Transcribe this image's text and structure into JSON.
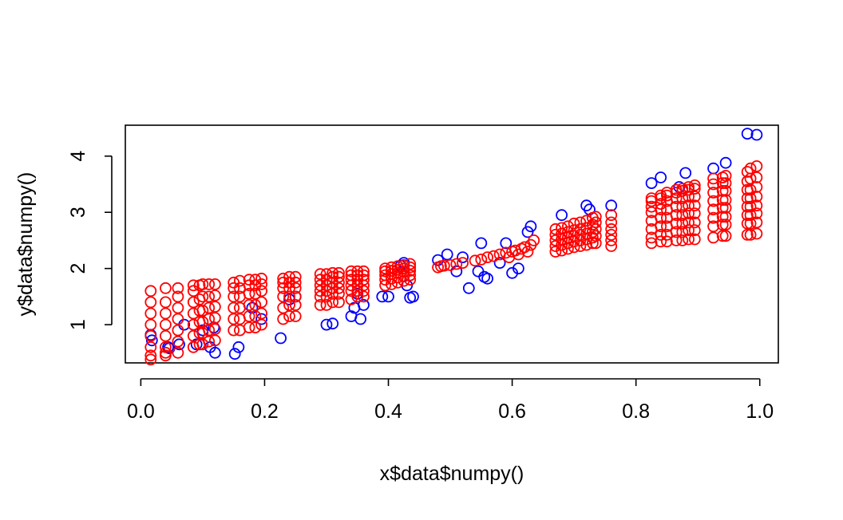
{
  "chart_data": {
    "type": "scatter",
    "title": "",
    "xlabel": "x$data$numpy()",
    "ylabel": "y$data$numpy()",
    "xlim": [
      -0.025,
      1.03
    ],
    "ylim": [
      0.32,
      4.55
    ],
    "xticks": [
      0.0,
      0.2,
      0.4,
      0.6,
      0.8,
      1.0
    ],
    "xtick_labels": [
      "0.0",
      "0.2",
      "0.4",
      "0.6",
      "0.8",
      "1.0"
    ],
    "yticks": [
      1,
      2,
      3,
      4
    ],
    "ytick_labels": [
      "1",
      "2",
      "3",
      "4"
    ],
    "grid": false,
    "legend": "none",
    "series": [
      {
        "color": "#0000ff",
        "marker": "open-circle",
        "x": [
          0.016,
          0.018,
          0.044,
          0.046,
          0.062,
          0.07,
          0.09,
          0.1,
          0.112,
          0.118,
          0.12,
          0.152,
          0.158,
          0.18,
          0.195,
          0.226,
          0.24,
          0.25,
          0.3,
          0.31,
          0.34,
          0.345,
          0.35,
          0.355,
          0.36,
          0.39,
          0.4,
          0.42,
          0.425,
          0.43,
          0.435,
          0.44,
          0.48,
          0.495,
          0.51,
          0.52,
          0.53,
          0.545,
          0.55,
          0.555,
          0.56,
          0.58,
          0.59,
          0.6,
          0.61,
          0.625,
          0.63,
          0.68,
          0.72,
          0.725,
          0.76,
          0.825,
          0.84,
          0.87,
          0.88,
          0.925,
          0.945,
          0.98,
          0.995
        ],
        "y": [
          0.82,
          0.72,
          0.6,
          0.58,
          0.65,
          1.0,
          0.65,
          0.9,
          0.6,
          0.95,
          0.5,
          0.48,
          0.6,
          1.3,
          1.1,
          0.76,
          1.45,
          1.5,
          1.0,
          1.02,
          1.15,
          1.3,
          1.55,
          1.1,
          1.35,
          1.5,
          1.5,
          2.05,
          2.1,
          1.7,
          1.48,
          1.5,
          2.15,
          2.25,
          1.95,
          2.2,
          1.65,
          1.95,
          2.45,
          1.85,
          1.82,
          2.1,
          2.45,
          1.92,
          2.0,
          2.65,
          2.75,
          2.95,
          3.12,
          3.05,
          3.12,
          3.52,
          3.62,
          3.45,
          3.7,
          3.78,
          3.88,
          4.4,
          4.38
        ]
      },
      {
        "color": "#ff0000",
        "marker": "open-circle",
        "x": [
          0.016,
          0.016,
          0.016,
          0.016,
          0.016,
          0.016,
          0.016,
          0.016,
          0.04,
          0.04,
          0.04,
          0.04,
          0.04,
          0.04,
          0.04,
          0.04,
          0.06,
          0.06,
          0.06,
          0.06,
          0.06,
          0.06,
          0.06,
          0.085,
          0.085,
          0.085,
          0.085,
          0.085,
          0.085,
          0.085,
          0.095,
          0.095,
          0.095,
          0.095,
          0.095,
          0.095,
          0.1,
          0.1,
          0.1,
          0.1,
          0.1,
          0.1,
          0.11,
          0.11,
          0.11,
          0.11,
          0.11,
          0.11,
          0.12,
          0.12,
          0.12,
          0.12,
          0.12,
          0.12,
          0.15,
          0.15,
          0.15,
          0.15,
          0.15,
          0.15,
          0.16,
          0.16,
          0.16,
          0.16,
          0.16,
          0.16,
          0.175,
          0.175,
          0.175,
          0.175,
          0.175,
          0.175,
          0.185,
          0.185,
          0.185,
          0.185,
          0.185,
          0.185,
          0.195,
          0.195,
          0.195,
          0.195,
          0.195,
          0.195,
          0.23,
          0.23,
          0.23,
          0.23,
          0.23,
          0.23,
          0.24,
          0.24,
          0.24,
          0.24,
          0.24,
          0.24,
          0.25,
          0.25,
          0.25,
          0.25,
          0.25,
          0.25,
          0.29,
          0.29,
          0.29,
          0.29,
          0.29,
          0.29,
          0.3,
          0.3,
          0.3,
          0.3,
          0.3,
          0.3,
          0.31,
          0.31,
          0.31,
          0.31,
          0.31,
          0.31,
          0.32,
          0.32,
          0.32,
          0.32,
          0.32,
          0.32,
          0.34,
          0.34,
          0.34,
          0.34,
          0.34,
          0.34,
          0.35,
          0.35,
          0.35,
          0.35,
          0.35,
          0.35,
          0.36,
          0.36,
          0.36,
          0.36,
          0.36,
          0.36,
          0.395,
          0.395,
          0.395,
          0.395,
          0.395,
          0.405,
          0.405,
          0.405,
          0.405,
          0.405,
          0.415,
          0.415,
          0.415,
          0.415,
          0.415,
          0.425,
          0.425,
          0.425,
          0.425,
          0.425,
          0.435,
          0.435,
          0.435,
          0.435,
          0.435,
          0.48,
          0.485,
          0.49,
          0.5,
          0.51,
          0.52,
          0.54,
          0.55,
          0.56,
          0.57,
          0.58,
          0.59,
          0.595,
          0.6,
          0.605,
          0.61,
          0.615,
          0.62,
          0.625,
          0.63,
          0.635,
          0.67,
          0.67,
          0.67,
          0.67,
          0.67,
          0.68,
          0.68,
          0.68,
          0.68,
          0.68,
          0.69,
          0.69,
          0.69,
          0.69,
          0.69,
          0.7,
          0.7,
          0.7,
          0.7,
          0.7,
          0.71,
          0.71,
          0.71,
          0.71,
          0.71,
          0.72,
          0.72,
          0.72,
          0.72,
          0.72,
          0.73,
          0.73,
          0.73,
          0.73,
          0.73,
          0.735,
          0.735,
          0.735,
          0.735,
          0.735,
          0.76,
          0.76,
          0.76,
          0.76,
          0.76,
          0.76,
          0.825,
          0.825,
          0.825,
          0.825,
          0.825,
          0.825,
          0.825,
          0.825,
          0.84,
          0.84,
          0.84,
          0.84,
          0.84,
          0.84,
          0.84,
          0.84,
          0.85,
          0.85,
          0.85,
          0.85,
          0.85,
          0.85,
          0.85,
          0.85,
          0.865,
          0.865,
          0.865,
          0.865,
          0.865,
          0.865,
          0.865,
          0.865,
          0.875,
          0.875,
          0.875,
          0.875,
          0.875,
          0.875,
          0.875,
          0.875,
          0.885,
          0.885,
          0.885,
          0.885,
          0.885,
          0.885,
          0.885,
          0.885,
          0.895,
          0.895,
          0.895,
          0.895,
          0.895,
          0.895,
          0.895,
          0.895,
          0.925,
          0.925,
          0.925,
          0.925,
          0.925,
          0.925,
          0.925,
          0.925,
          0.94,
          0.94,
          0.94,
          0.94,
          0.94,
          0.94,
          0.94,
          0.94,
          0.945,
          0.945,
          0.945,
          0.945,
          0.945,
          0.945,
          0.945,
          0.945,
          0.98,
          0.98,
          0.98,
          0.98,
          0.98,
          0.98,
          0.98,
          0.98,
          0.985,
          0.985,
          0.985,
          0.985,
          0.985,
          0.985,
          0.985,
          0.985,
          0.995,
          0.995,
          0.995,
          0.995,
          0.995,
          0.995,
          0.995,
          0.995
        ],
        "y": [
          0.45,
          0.6,
          0.8,
          1.0,
          1.2,
          1.4,
          1.6,
          0.38,
          0.45,
          0.6,
          0.8,
          1.0,
          1.2,
          1.4,
          1.65,
          0.5,
          0.5,
          0.7,
          0.9,
          1.1,
          1.3,
          1.5,
          1.65,
          0.6,
          0.8,
          1.0,
          1.2,
          1.4,
          1.6,
          1.7,
          0.65,
          0.85,
          1.05,
          1.25,
          1.45,
          1.7,
          0.65,
          0.85,
          1.05,
          1.25,
          1.5,
          1.72,
          0.7,
          0.9,
          1.1,
          1.3,
          1.5,
          1.72,
          0.72,
          0.92,
          1.12,
          1.32,
          1.52,
          1.72,
          0.9,
          1.1,
          1.3,
          1.5,
          1.65,
          1.75,
          0.9,
          1.1,
          1.3,
          1.5,
          1.65,
          1.78,
          0.95,
          1.15,
          1.35,
          1.55,
          1.7,
          1.8,
          0.95,
          1.15,
          1.35,
          1.55,
          1.7,
          1.8,
          1.0,
          1.2,
          1.4,
          1.6,
          1.72,
          1.82,
          1.1,
          1.3,
          1.5,
          1.65,
          1.75,
          1.82,
          1.15,
          1.35,
          1.5,
          1.65,
          1.75,
          1.85,
          1.15,
          1.35,
          1.5,
          1.65,
          1.75,
          1.85,
          1.35,
          1.5,
          1.6,
          1.7,
          1.8,
          1.9,
          1.35,
          1.5,
          1.6,
          1.7,
          1.8,
          1.9,
          1.4,
          1.55,
          1.65,
          1.75,
          1.85,
          1.92,
          1.4,
          1.55,
          1.65,
          1.75,
          1.85,
          1.92,
          1.45,
          1.6,
          1.7,
          1.8,
          1.88,
          1.95,
          1.5,
          1.6,
          1.7,
          1.8,
          1.88,
          1.95,
          1.5,
          1.6,
          1.7,
          1.8,
          1.88,
          1.95,
          1.7,
          1.8,
          1.88,
          1.95,
          2.0,
          1.72,
          1.82,
          1.9,
          1.96,
          2.02,
          1.75,
          1.84,
          1.92,
          1.98,
          2.04,
          1.78,
          1.86,
          1.94,
          2.0,
          2.06,
          1.8,
          1.88,
          1.96,
          2.02,
          2.08,
          2.02,
          2.04,
          2.05,
          2.06,
          2.08,
          2.1,
          2.14,
          2.16,
          2.2,
          2.22,
          2.25,
          2.28,
          2.2,
          2.3,
          2.32,
          2.25,
          2.35,
          2.38,
          2.3,
          2.42,
          2.5,
          2.3,
          2.4,
          2.5,
          2.6,
          2.7,
          2.32,
          2.42,
          2.52,
          2.62,
          2.72,
          2.35,
          2.45,
          2.55,
          2.65,
          2.75,
          2.38,
          2.48,
          2.58,
          2.68,
          2.8,
          2.4,
          2.5,
          2.6,
          2.7,
          2.82,
          2.42,
          2.52,
          2.62,
          2.72,
          2.85,
          2.45,
          2.55,
          2.65,
          2.78,
          2.9,
          2.45,
          2.58,
          2.7,
          2.82,
          2.92,
          2.4,
          2.5,
          2.6,
          2.7,
          2.82,
          2.95,
          2.45,
          2.55,
          2.7,
          2.85,
          3.0,
          3.1,
          3.2,
          3.25,
          2.48,
          2.6,
          2.75,
          2.9,
          3.05,
          3.15,
          3.25,
          3.3,
          2.48,
          2.6,
          2.75,
          2.9,
          3.05,
          3.2,
          3.3,
          3.35,
          2.5,
          2.65,
          2.8,
          2.95,
          3.1,
          3.25,
          3.35,
          3.4,
          2.5,
          2.65,
          2.8,
          2.95,
          3.1,
          3.25,
          3.38,
          3.42,
          2.52,
          2.68,
          2.82,
          2.98,
          3.12,
          3.28,
          3.4,
          3.45,
          2.52,
          2.68,
          2.82,
          2.98,
          3.12,
          3.28,
          3.42,
          3.48,
          2.55,
          2.75,
          2.9,
          3.05,
          3.2,
          3.35,
          3.5,
          3.6,
          2.58,
          2.78,
          2.92,
          3.08,
          3.22,
          3.38,
          3.52,
          3.62,
          2.58,
          2.78,
          2.92,
          3.08,
          3.22,
          3.38,
          3.52,
          3.65,
          2.6,
          2.8,
          2.95,
          3.1,
          3.25,
          3.4,
          3.55,
          3.72,
          2.6,
          2.8,
          2.95,
          3.1,
          3.25,
          3.4,
          3.6,
          3.78,
          2.62,
          2.82,
          2.98,
          3.12,
          3.28,
          3.45,
          3.62,
          3.82
        ]
      }
    ]
  }
}
